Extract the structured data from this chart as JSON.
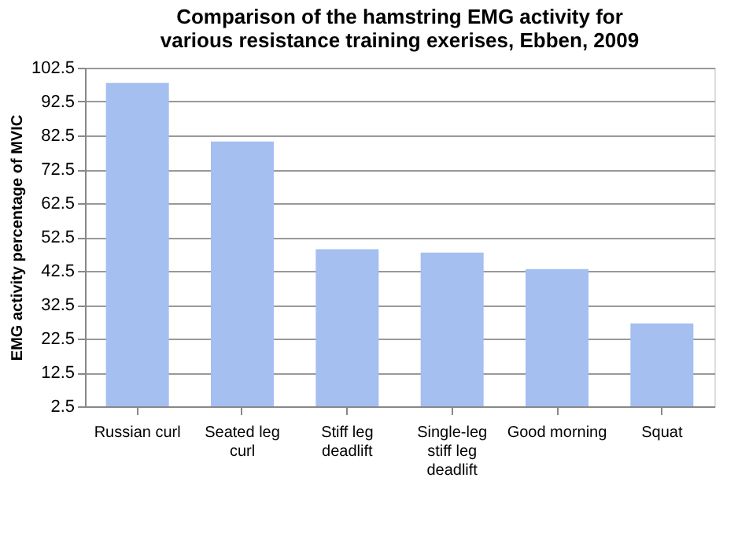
{
  "chart_data": {
    "type": "bar",
    "title": "Comparison of the hamstring EMG activity for various resistance training exerises, Ebben, 2009",
    "ylabel": "EMG activity percentage of MVIC",
    "categories": [
      "Russian curl",
      "Seated leg curl",
      "Stiff leg deadlift",
      "Single-leg stiff leg deadlift",
      "Good morning",
      "Squat"
    ],
    "values": [
      98,
      80.7,
      48.9,
      47.9,
      43,
      27
    ],
    "color": "#a4bff0",
    "ylim": [
      2.5,
      102.5
    ],
    "yticks": [
      2.5,
      12.5,
      22.5,
      32.5,
      42.5,
      52.5,
      62.5,
      72.5,
      82.5,
      92.5,
      102.5
    ],
    "grid": "y"
  }
}
